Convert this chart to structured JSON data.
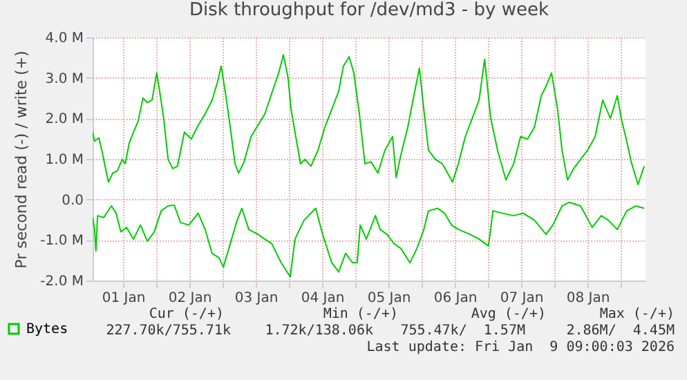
{
  "chart_data": {
    "type": "line",
    "title": "Disk throughput for /dev/md3 - by week",
    "ylabel": "Pr second read (-) / write (+)",
    "xlim": [
      "2026-01-01T01:00",
      "2026-01-09T09:00"
    ],
    "ylim": [
      -2,
      4
    ],
    "xticks": [
      {
        "value": "2026-01-01T12:00",
        "label": "01 Jan"
      },
      {
        "value": "2026-01-02T00:00",
        "label": null
      },
      {
        "value": "2026-01-02T12:00",
        "label": "02 Jan"
      },
      {
        "value": "2026-01-03T00:00",
        "label": null
      },
      {
        "value": "2026-01-03T12:00",
        "label": "03 Jan"
      },
      {
        "value": "2026-01-04T00:00",
        "label": null
      },
      {
        "value": "2026-01-04T12:00",
        "label": "04 Jan"
      },
      {
        "value": "2026-01-05T00:00",
        "label": null
      },
      {
        "value": "2026-01-05T12:00",
        "label": "05 Jan"
      },
      {
        "value": "2026-01-06T00:00",
        "label": null
      },
      {
        "value": "2026-01-06T12:00",
        "label": "06 Jan"
      },
      {
        "value": "2026-01-07T00:00",
        "label": null
      },
      {
        "value": "2026-01-07T12:00",
        "label": "07 Jan"
      },
      {
        "value": "2026-01-08T00:00",
        "label": null
      },
      {
        "value": "2026-01-08T12:00",
        "label": "08 Jan"
      },
      {
        "value": "2026-01-09T00:00",
        "label": null
      }
    ],
    "yticks": [
      {
        "value": -2,
        "label": "-2.0 M"
      },
      {
        "value": -1,
        "label": "-1.0 M"
      },
      {
        "value": 0,
        "label": "0.0"
      },
      {
        "value": 1,
        "label": "1.0 M"
      },
      {
        "value": 2,
        "label": "2.0 M"
      },
      {
        "value": 3,
        "label": "3.0 M"
      },
      {
        "value": 4,
        "label": "4.0 M"
      }
    ],
    "grid": true,
    "legend": "bottom left",
    "series": [
      {
        "name": "Bytes",
        "color": "#00cc00",
        "x": [
          "2026-01-01T01:00",
          "2026-01-01T01:42",
          "2026-01-01T03:18",
          "2026-01-01T04:30",
          "2026-01-01T05:30",
          "2026-01-01T06:42",
          "2026-01-01T08:18",
          "2026-01-01T10:00",
          "2026-01-01T11:42",
          "2026-01-01T12:48",
          "2026-01-01T14:12",
          "2026-01-01T15:48",
          "2026-01-01T17:30",
          "2026-01-01T19:12",
          "2026-01-01T20:48",
          "2026-01-01T22:30",
          "2026-01-02T00:12",
          "2026-01-02T01:30",
          "2026-01-02T02:42",
          "2026-01-02T04:18",
          "2026-01-02T06:00",
          "2026-01-02T07:42",
          "2026-01-02T10:12",
          "2026-01-02T12:42",
          "2026-01-02T15:12",
          "2026-01-02T17:42",
          "2026-01-02T20:12",
          "2026-01-02T22:12",
          "2026-01-02T23:30",
          "2026-01-03T01:12",
          "2026-01-03T02:48",
          "2026-01-03T04:30",
          "2026-01-03T05:48",
          "2026-01-03T07:48",
          "2026-01-03T10:18",
          "2026-01-03T12:48",
          "2026-01-03T15:18",
          "2026-01-03T17:48",
          "2026-01-03T20:18",
          "2026-01-03T22:00",
          "2026-01-03T23:42",
          "2026-01-04T00:48",
          "2026-01-04T02:12",
          "2026-01-04T04:12",
          "2026-01-04T05:48",
          "2026-01-04T08:00",
          "2026-01-04T10:30",
          "2026-01-04T13:00",
          "2026-01-04T15:30",
          "2026-01-04T18:00",
          "2026-01-04T19:42",
          "2026-01-04T21:48",
          "2026-01-04T23:30",
          "2026-01-05T01:30",
          "2026-01-05T03:30",
          "2026-01-05T05:42",
          "2026-01-05T08:12",
          "2026-01-05T10:42",
          "2026-01-05T13:30",
          "2026-01-05T14:48",
          "2026-01-05T16:30",
          "2026-01-05T19:00",
          "2026-01-05T21:12",
          "2026-01-05T23:12",
          "2026-01-06T00:48",
          "2026-01-06T02:30",
          "2026-01-06T05:00",
          "2026-01-06T07:30",
          "2026-01-06T11:12",
          "2026-01-06T13:18",
          "2026-01-06T15:48",
          "2026-01-06T18:18",
          "2026-01-06T20:48",
          "2026-01-06T22:48",
          "2026-01-07T01:00",
          "2026-01-07T03:30",
          "2026-01-07T06:30",
          "2026-01-07T09:18",
          "2026-01-07T11:48",
          "2026-01-07T14:18",
          "2026-01-07T16:48",
          "2026-01-07T19:18",
          "2026-01-07T21:00",
          "2026-01-07T23:00",
          "2026-01-08T01:12",
          "2026-01-08T02:48",
          "2026-01-08T04:48",
          "2026-01-08T07:00",
          "2026-01-08T09:30",
          "2026-01-08T12:00",
          "2026-01-08T14:48",
          "2026-01-08T17:30",
          "2026-01-08T20:18",
          "2026-01-08T22:48",
          "2026-01-09T00:12",
          "2026-01-09T02:12",
          "2026-01-09T03:48",
          "2026-01-09T06:18",
          "2026-01-09T08:30"
        ],
        "values": [
          1.66,
          1.44,
          1.52,
          1.16,
          0.82,
          0.43,
          0.65,
          0.71,
          0.99,
          0.88,
          1.38,
          1.66,
          1.94,
          2.5,
          2.39,
          2.45,
          3.12,
          2.56,
          2.0,
          0.99,
          0.76,
          0.82,
          1.66,
          1.49,
          1.83,
          2.11,
          2.45,
          2.9,
          3.29,
          2.56,
          1.78,
          0.88,
          0.65,
          0.93,
          1.55,
          1.83,
          2.11,
          2.62,
          3.12,
          3.57,
          3.0,
          2.22,
          1.66,
          0.88,
          0.99,
          0.82,
          1.21,
          1.78,
          2.22,
          2.67,
          3.29,
          3.52,
          3.12,
          2.11,
          0.88,
          0.93,
          0.65,
          1.21,
          1.55,
          0.54,
          1.1,
          1.78,
          2.56,
          3.24,
          2.22,
          1.21,
          0.99,
          0.88,
          0.43,
          0.88,
          1.55,
          2.0,
          2.45,
          3.46,
          2.0,
          1.21,
          0.48,
          0.88,
          1.55,
          1.49,
          1.78,
          2.56,
          2.79,
          3.12,
          2.22,
          1.21,
          0.48,
          0.76,
          0.99,
          1.21,
          1.55,
          2.45,
          2.0,
          2.56,
          2.0,
          1.44,
          0.93,
          0.37,
          0.82
        ]
      },
      {
        "color": "#00cc00",
        "x": [
          "2026-01-01T01:00",
          "2026-01-01T01:42",
          "2026-01-01T02:12",
          "2026-01-01T02:48",
          "2026-01-01T05:00",
          "2026-01-01T07:48",
          "2026-01-01T09:30",
          "2026-01-01T11:12",
          "2026-01-01T13:18",
          "2026-01-01T15:48",
          "2026-01-01T18:18",
          "2026-01-01T20:48",
          "2026-01-01T23:18",
          "2026-01-02T01:48",
          "2026-01-02T04:18",
          "2026-01-02T06:30",
          "2026-01-02T08:48",
          "2026-01-02T11:48",
          "2026-01-02T15:12",
          "2026-01-02T17:42",
          "2026-01-02T20:12",
          "2026-01-02T22:42",
          "2026-01-03T00:18",
          "2026-01-03T02:48",
          "2026-01-03T05:18",
          "2026-01-03T07:00",
          "2026-01-03T09:30",
          "2026-01-03T12:48",
          "2026-01-03T15:18",
          "2026-01-03T17:48",
          "2026-01-03T21:12",
          "2026-01-04T00:30",
          "2026-01-04T02:12",
          "2026-01-04T05:30",
          "2026-01-04T09:42",
          "2026-01-04T12:12",
          "2026-01-04T15:30",
          "2026-01-04T18:00",
          "2026-01-04T20:30",
          "2026-01-04T23:00",
          "2026-01-05T00:42",
          "2026-01-05T01:48",
          "2026-01-05T04:00",
          "2026-01-05T07:18",
          "2026-01-05T09:00",
          "2026-01-05T11:30",
          "2026-01-05T14:00",
          "2026-01-05T16:30",
          "2026-01-05T19:48",
          "2026-01-05T22:18",
          "2026-01-06T00:48",
          "2026-01-06T02:30",
          "2026-01-06T05:48",
          "2026-01-06T08:18",
          "2026-01-06T10:48",
          "2026-01-06T13:18",
          "2026-01-06T17:30",
          "2026-01-06T20:48",
          "2026-01-07T00:12",
          "2026-01-07T01:48",
          "2026-01-07T05:12",
          "2026-01-07T09:18",
          "2026-01-07T12:42",
          "2026-01-07T16:48",
          "2026-01-07T21:00",
          "2026-01-07T23:30",
          "2026-01-08T02:48",
          "2026-01-08T05:18",
          "2026-01-08T09:30",
          "2026-01-08T13:42",
          "2026-01-08T17:00",
          "2026-01-08T19:30",
          "2026-01-08T22:48",
          "2026-01-09T02:12",
          "2026-01-09T05:30",
          "2026-01-09T08:30"
        ],
        "values": [
          -0.45,
          -0.74,
          -1.27,
          -0.4,
          -0.45,
          -0.16,
          -0.34,
          -0.8,
          -0.69,
          -0.98,
          -0.63,
          -1.03,
          -0.8,
          -0.28,
          -0.16,
          -0.14,
          -0.57,
          -0.63,
          -0.34,
          -0.74,
          -1.33,
          -1.44,
          -1.67,
          -1.09,
          -0.51,
          -0.22,
          -0.74,
          -0.86,
          -0.98,
          -1.09,
          -1.56,
          -1.91,
          -0.98,
          -0.51,
          -0.22,
          -0.86,
          -1.56,
          -1.79,
          -1.33,
          -1.56,
          -1.56,
          -0.63,
          -0.98,
          -0.4,
          -0.74,
          -0.86,
          -1.09,
          -1.21,
          -1.56,
          -1.21,
          -0.74,
          -0.28,
          -0.22,
          -0.34,
          -0.63,
          -0.74,
          -0.86,
          -0.98,
          -1.15,
          -0.28,
          -0.34,
          -0.4,
          -0.34,
          -0.51,
          -0.86,
          -0.63,
          -0.16,
          -0.07,
          -0.16,
          -0.69,
          -0.4,
          -0.51,
          -0.74,
          -0.28,
          -0.16,
          -0.22
        ]
      }
    ],
    "annotations": [
      "Cur (-/+)",
      "Min (-/+)",
      "Avg (-/+)",
      "Max (-/+)",
      "227.70k/755.71k",
      "1.72k/138.06k",
      "755.47k/  1.57M",
      "2.86M/  4.45M",
      "Last update: Fri Jan  9 09:00:03 2026"
    ]
  }
}
